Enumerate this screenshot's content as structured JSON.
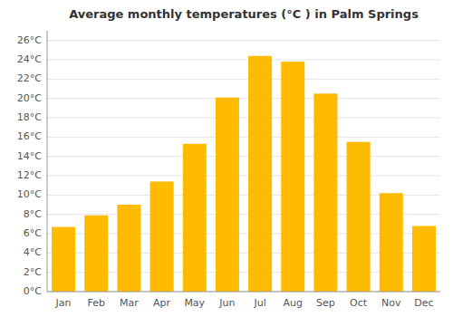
{
  "chart_data": {
    "type": "bar",
    "title": "Average monthly temperatures (°C ) in Palm Springs",
    "categories": [
      "Jan",
      "Feb",
      "Mar",
      "Apr",
      "May",
      "Jun",
      "Jul",
      "Aug",
      "Sep",
      "Oct",
      "Nov",
      "Dec"
    ],
    "values": [
      6.7,
      7.9,
      9.0,
      11.4,
      15.3,
      20.1,
      24.4,
      23.8,
      20.5,
      15.5,
      10.2,
      6.8
    ],
    "color": "#FFBB00",
    "ylim": [
      0,
      27
    ],
    "yticks": [
      {
        "value": 0,
        "label": "0°C"
      },
      {
        "value": 2,
        "label": "2°C"
      },
      {
        "value": 4,
        "label": "4°C"
      },
      {
        "value": 6,
        "label": "6°C"
      },
      {
        "value": 8,
        "label": "8°C"
      },
      {
        "value": 10,
        "label": "10°C"
      },
      {
        "value": 12,
        "label": "12°C"
      },
      {
        "value": 14,
        "label": "14°C"
      },
      {
        "value": 16,
        "label": "16°C"
      },
      {
        "value": 18,
        "label": "18°C"
      },
      {
        "value": 20,
        "label": "20°C"
      },
      {
        "value": 22,
        "label": "22°C"
      },
      {
        "value": 24,
        "label": "24°C"
      },
      {
        "value": 26,
        "label": "26°C"
      }
    ],
    "grid": true
  }
}
